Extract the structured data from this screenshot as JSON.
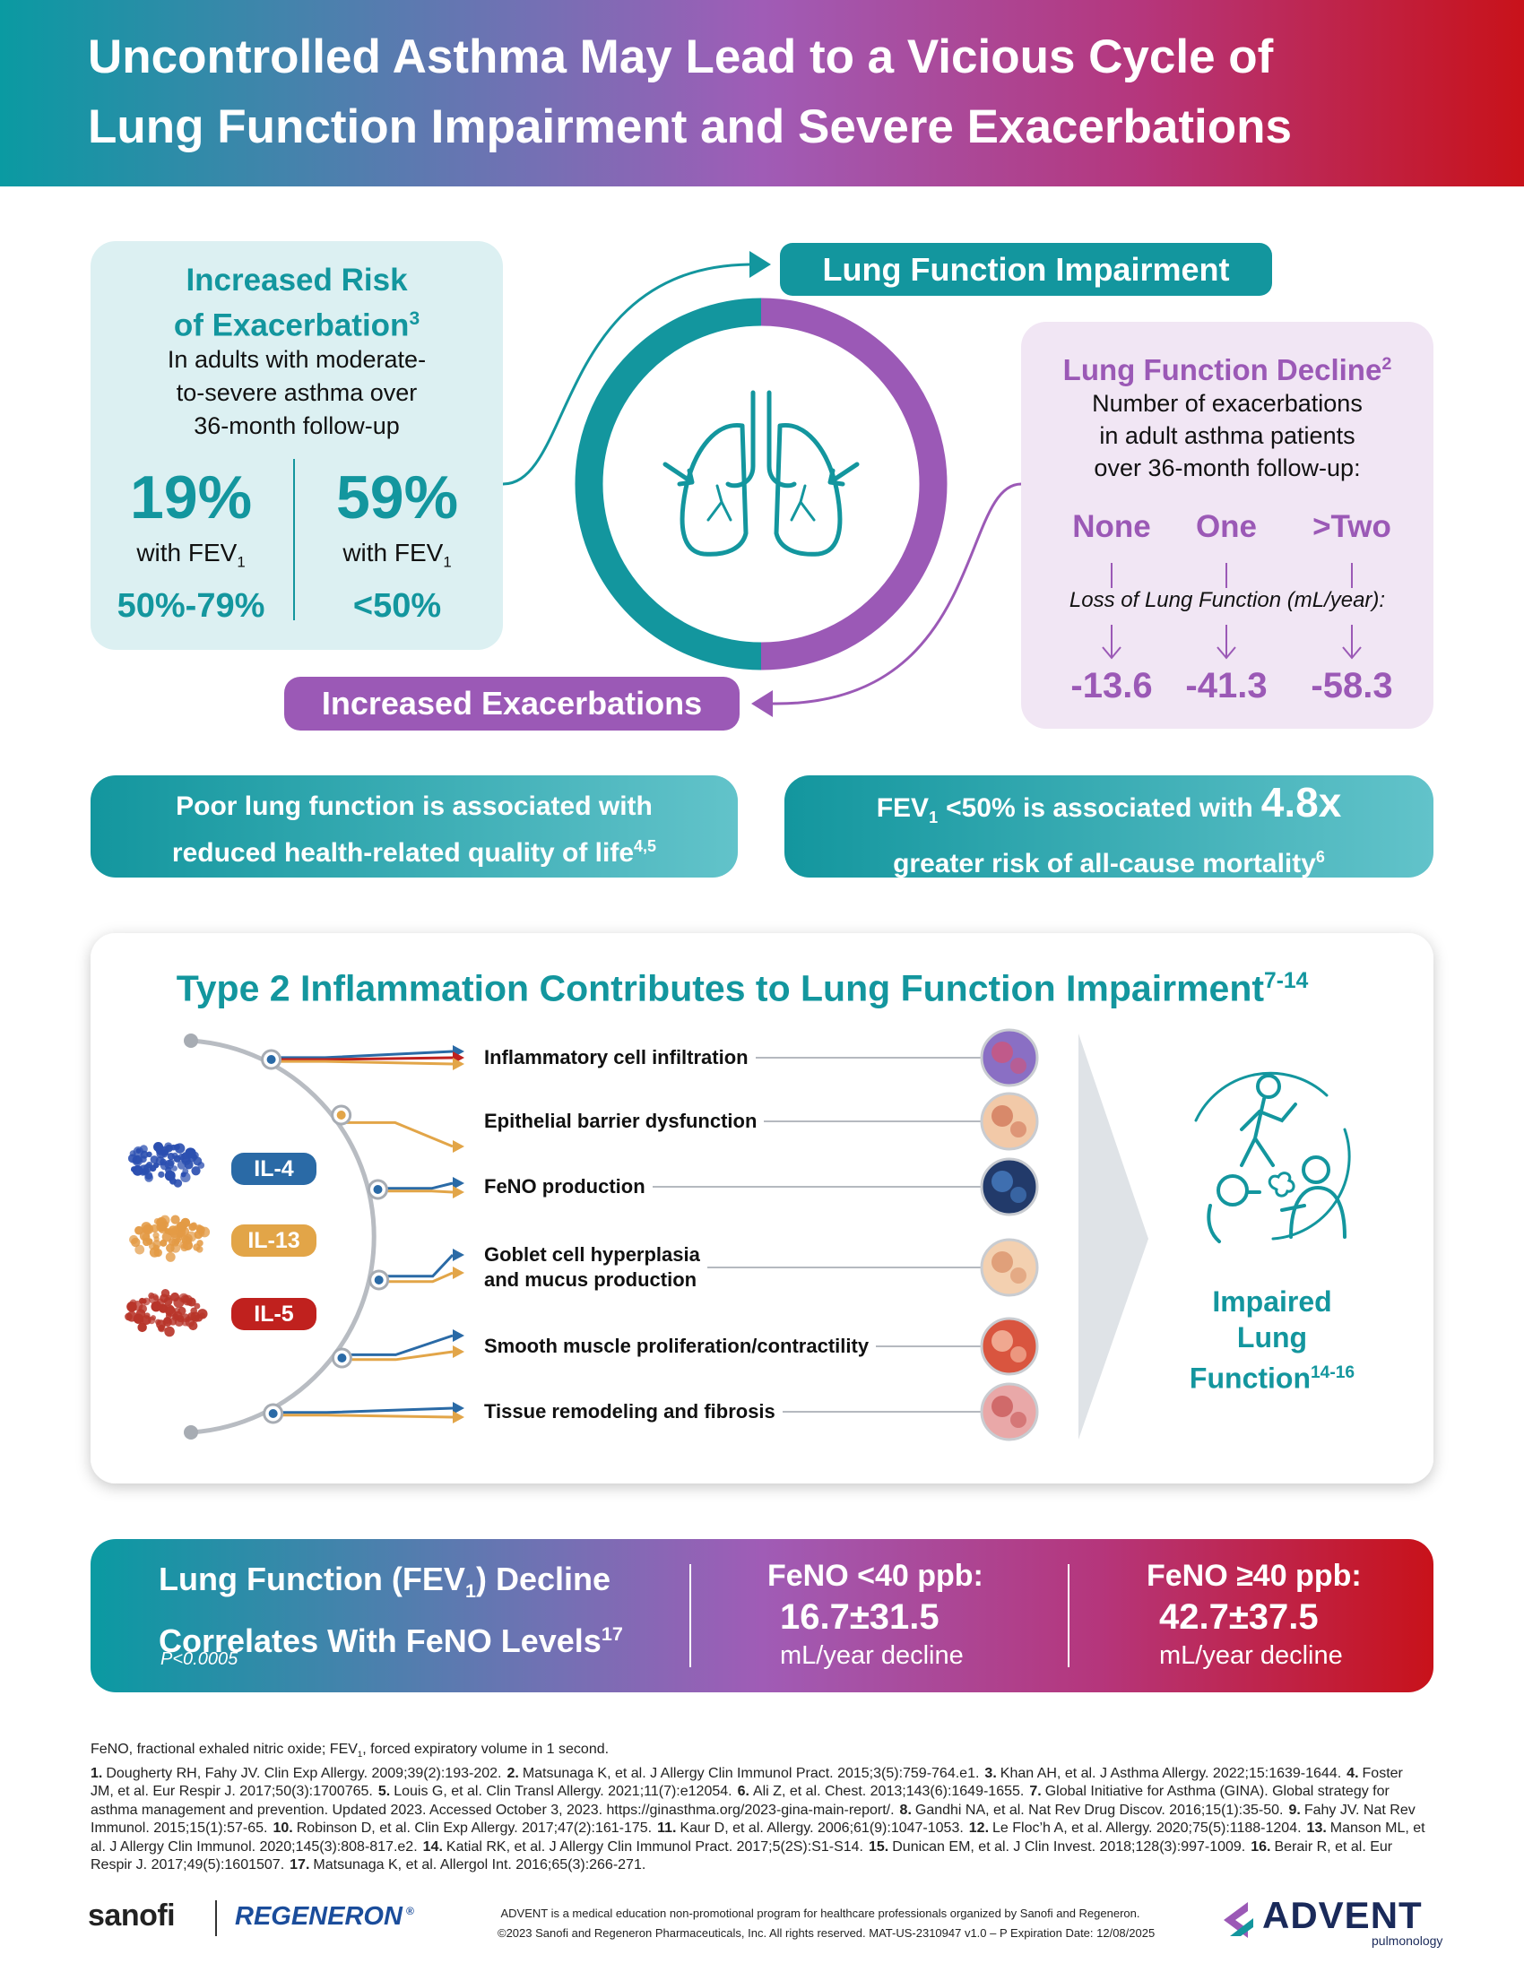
{
  "header": {
    "title_lines": [
      "Uncontrolled Asthma May Lead to a Vicious Cycle of",
      "Lung Function Impairment and Severe Exacerbations"
    ]
  },
  "risk_box": {
    "title_lines": [
      "Increased Risk",
      "of Exacerbation"
    ],
    "ref": "3",
    "description_lines": [
      "In adults with moderate-",
      "to-severe asthma over",
      "36-month follow-up"
    ],
    "stats": [
      {
        "value": "19%",
        "label": "with FEV",
        "sub": "1",
        "range": "50%-79%"
      },
      {
        "value": "59%",
        "label": "with FEV",
        "sub": "1",
        "range": "<50%"
      }
    ]
  },
  "cycle": {
    "top_label": "Lung Function Impairment",
    "bottom_label": "Increased Exacerbations"
  },
  "decline_box": {
    "title": "Lung Function Decline",
    "ref": "2",
    "description_lines": [
      "Number of exacerbations",
      "in adult asthma patients",
      "over 36-month follow-up:"
    ],
    "categories": [
      "None",
      "One",
      ">Two"
    ],
    "measure": "Loss of Lung Function (mL/year):",
    "values": [
      -13.6,
      -41.3,
      -58.3
    ]
  },
  "quality_callout": {
    "lines": [
      "Poor lung function is associated with",
      "reduced health-related quality of life"
    ],
    "ref": "4,5"
  },
  "mortality_callout": {
    "lead": "FEV",
    "sub": "1",
    "text": "<50% is associated with",
    "highlight": "4.8x",
    "line2": "greater risk of all-cause mortality",
    "ref": "6"
  },
  "inflammation": {
    "title": "Type 2 Inflammation Contributes to Lung Function Impairment",
    "ref": "7-14",
    "cytokines": [
      "IL-4",
      "IL-13",
      "IL-5"
    ],
    "effects": [
      [
        "Inflammatory cell infiltration"
      ],
      [
        "Epithelial barrier dysfunction"
      ],
      [
        "FeNO production"
      ],
      [
        "Goblet cell hyperplasia",
        "and mucus production"
      ],
      [
        "Smooth muscle proliferation/contractility"
      ],
      [
        "Tissue remodeling and fibrosis"
      ]
    ],
    "outcome_lines": [
      "Impaired",
      "Lung",
      "Function"
    ],
    "outcome_ref": "14-16"
  },
  "feno": {
    "title_lead": "Lung Function (FEV",
    "title_sub": "1",
    "title_rest": ") Decline",
    "title_line2": "Correlates With FeNO Levels",
    "ref": "17",
    "p_value": "P<0.0005",
    "groups": [
      {
        "label": "FeNO <40 ppb:",
        "value": "16.7±31.5",
        "unit": "mL/year decline"
      },
      {
        "label": "FeNO ≥40 ppb:",
        "value": "42.7±37.5",
        "unit": "mL/year decline"
      }
    ]
  },
  "footnotes": {
    "abbrev_lead": "FeNO, fractional exhaled nitric oxide; FEV",
    "abbrev_sub": "1",
    "abbrev_rest": ", forced expiratory volume in 1 second.",
    "references": [
      {
        "num": "1.",
        "text": "Dougherty RH, Fahy JV. Clin Exp Allergy. 2009;39(2):193-202."
      },
      {
        "num": "2.",
        "text": "Matsunaga K, et al. J Allergy Clin Immunol Pract. 2015;3(5):759-764.e1."
      },
      {
        "num": "3.",
        "text": "Khan AH, et al. J Asthma Allergy. 2022;15:1639-1644."
      },
      {
        "num": "4.",
        "text": "Foster JM, et al. Eur Respir J. 2017;50(3):1700765."
      },
      {
        "num": "5.",
        "text": "Louis G, et al. Clin Transl Allergy. 2021;11(7):e12054."
      },
      {
        "num": "6.",
        "text": "Ali Z, et al. Chest. 2013;143(6):1649-1655."
      },
      {
        "num": "7.",
        "text": "Global Initiative for Asthma (GINA). Global strategy for asthma management and prevention. Updated 2023. Accessed October 3, 2023. https://ginasthma.org/2023-gina-main-report/."
      },
      {
        "num": "8.",
        "text": "Gandhi NA, et al. Nat Rev Drug Discov. 2016;15(1):35-50."
      },
      {
        "num": "9.",
        "text": "Fahy JV. Nat Rev Immunol. 2015;15(1):57-65."
      },
      {
        "num": "10.",
        "text": "Robinson D, et al. Clin Exp Allergy. 2017;47(2):161-175."
      },
      {
        "num": "11.",
        "text": "Kaur D, et al. Allergy. 2006;61(9):1047-1053."
      },
      {
        "num": "12.",
        "text": "Le Floc’h A, et al. Allergy. 2020;75(5):1188-1204."
      },
      {
        "num": "13.",
        "text": "Manson ML, et al. J Allergy Clin Immunol. 2020;145(3):808-817.e2."
      },
      {
        "num": "14.",
        "text": "Katial RK, et al. J Allergy Clin Immunol Pract. 2017;5(2S):S1-S14."
      },
      {
        "num": "15.",
        "text": "Dunican EM, et al. J Clin Invest. 2018;128(3):997-1009."
      },
      {
        "num": "16.",
        "text": "Berair R, et al. Eur Respir J. 2017;49(5):1601507."
      },
      {
        "num": "17.",
        "text": "Matsunaga K, et al. Allergol Int. 2016;65(3):266-271."
      }
    ]
  },
  "footer": {
    "sanofi": "sanofi",
    "regeneron": "REGENERON",
    "reg_mark": "®",
    "disclaimer_lines": [
      "ADVENT is a medical education non-promotional program for healthcare professionals organized by Sanofi and Regeneron.",
      "©2023 Sanofi and Regeneron Pharmaceuticals, Inc. All rights reserved. MAT-US-2310947 v1.0 – P Expiration Date: 12/08/2025"
    ],
    "advent": "ADVENT",
    "advent_sub": "pulmonology"
  }
}
